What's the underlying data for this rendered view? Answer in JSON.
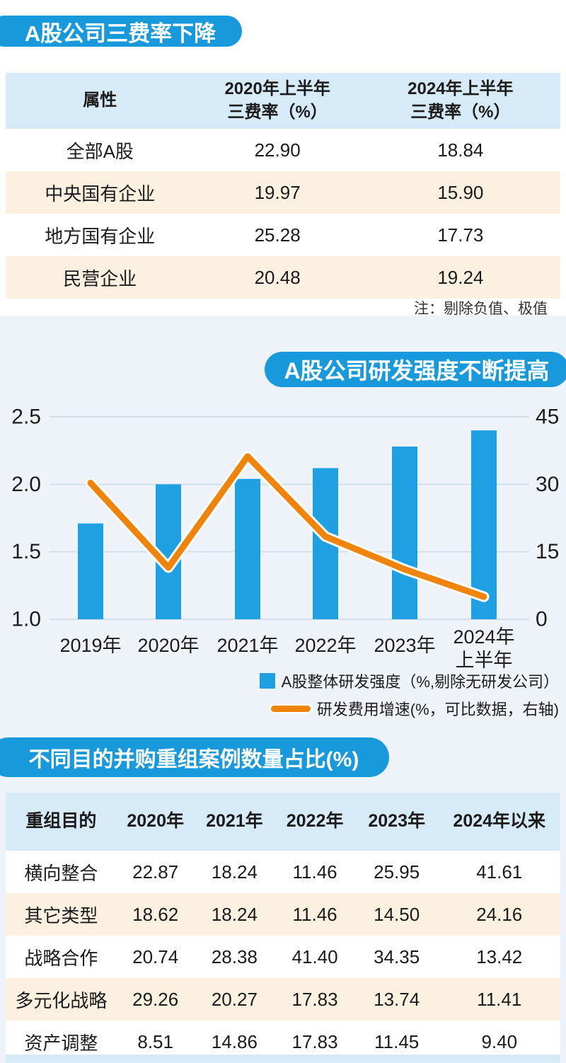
{
  "colors": {
    "accent_blue": "#1899DB",
    "bar_blue": "#1FA0E2",
    "line_orange": "#F0830A",
    "table_header_bg": "#D7EAF7",
    "table_stripe_bg": "#FCF1E1",
    "panel_bg": "#EDF3F9",
    "grid_line": "#D5DFE8",
    "text_dark": "#1b1b1b"
  },
  "section1": {
    "title_ref": "see chart_data.0.title"
  },
  "chart_data": [
    {
      "type": "table",
      "title": "A股公司三费率下降",
      "columns": [
        "属性",
        "2020年上半年\n三费率（%）",
        "2024年上半年\n三费率（%）"
      ],
      "rows": [
        [
          "全部A股",
          "22.90",
          "18.84"
        ],
        [
          "中央国有企业",
          "19.97",
          "15.90"
        ],
        [
          "地方国有企业",
          "25.28",
          "17.73"
        ],
        [
          "民营企业",
          "20.48",
          "19.24"
        ]
      ],
      "note": "注：剔除负值、极值"
    },
    {
      "type": "bar",
      "title": "A股公司研发强度不断提高",
      "categories": [
        "2019年",
        "2020年",
        "2021年",
        "2022年",
        "2023年",
        "2024年上半年"
      ],
      "series": [
        {
          "name": "A股整体研发强度（%,剔除无研发公司）",
          "chart": "bar",
          "axis": "left",
          "color": "#1FA0E2",
          "values": [
            1.71,
            2.0,
            2.04,
            2.12,
            2.28,
            2.4
          ]
        },
        {
          "name": "研发费用增速(%，可比数据，右轴)",
          "chart": "line",
          "axis": "right",
          "color": "#F0830A",
          "values": [
            30.3,
            11.5,
            36.2,
            18.4,
            11.1,
            5.0
          ]
        }
      ],
      "left_axis": {
        "ticks": [
          "1.0",
          "1.5",
          "2.0",
          "2.5"
        ],
        "range": [
          1.0,
          2.5
        ]
      },
      "right_axis": {
        "ticks": [
          "0",
          "15",
          "30",
          "45"
        ],
        "range": [
          0,
          45
        ]
      },
      "grid": true,
      "legend_position": "bottom-right"
    },
    {
      "type": "table",
      "title": "不同目的并购重组案例数量占比(%)",
      "columns": [
        "重组目的",
        "2020年",
        "2021年",
        "2022年",
        "2023年",
        "2024年以来"
      ],
      "rows": [
        [
          "横向整合",
          "22.87",
          "18.24",
          "11.46",
          "25.95",
          "41.61"
        ],
        [
          "其它类型",
          "18.62",
          "18.24",
          "11.46",
          "14.50",
          "24.16"
        ],
        [
          "战略合作",
          "20.74",
          "28.38",
          "41.40",
          "34.35",
          "13.42"
        ],
        [
          "多元化战略",
          "29.26",
          "20.27",
          "17.83",
          "13.74",
          "11.41"
        ],
        [
          "资产调整",
          "8.51",
          "14.86",
          "17.83",
          "11.45",
          "9.40"
        ]
      ]
    }
  ]
}
